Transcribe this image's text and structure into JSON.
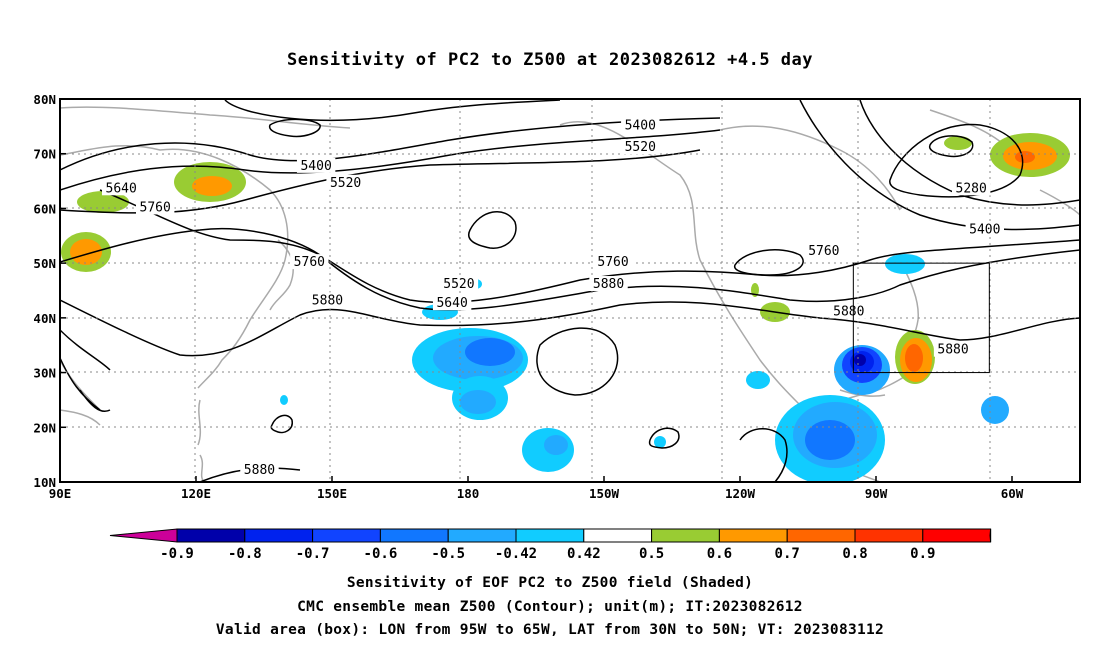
{
  "title": "Sensitivity of PC2 to Z500 at 2023082612 +4.5 day",
  "map": {
    "lon_labels": [
      "90E",
      "120E",
      "150E",
      "180",
      "150W",
      "120W",
      "90W",
      "60W"
    ],
    "lat_labels": [
      "80N",
      "70N",
      "60N",
      "50N",
      "40N",
      "30N",
      "20N",
      "10N"
    ],
    "contour_labels": [
      {
        "text": "5400",
        "lon": 146.5,
        "lat": 67.6
      },
      {
        "text": "5640",
        "lon": 103.5,
        "lat": 63.5
      },
      {
        "text": "5520",
        "lon": 153.0,
        "lat": 64.5
      },
      {
        "text": "5760",
        "lon": 111.0,
        "lat": 60.0
      },
      {
        "text": "5760",
        "lon": 145.0,
        "lat": 50.0
      },
      {
        "text": "5880",
        "lon": 149.0,
        "lat": 43.0
      },
      {
        "text": "5400",
        "lon": 218.0,
        "lat": 75.0
      },
      {
        "text": "5520",
        "lon": 218.0,
        "lat": 71.0
      },
      {
        "text": "5520",
        "lon": 178.0,
        "lat": 46.0
      },
      {
        "text": "5640",
        "lon": 176.5,
        "lat": 42.5
      },
      {
        "text": "5760",
        "lon": 212.0,
        "lat": 50.0
      },
      {
        "text": "5880",
        "lon": 211.0,
        "lat": 46.0
      },
      {
        "text": "5760",
        "lon": 258.5,
        "lat": 52.0
      },
      {
        "text": "5880",
        "lon": 264.0,
        "lat": 41.0
      },
      {
        "text": "5280",
        "lon": 291.0,
        "lat": 63.5
      },
      {
        "text": "5400",
        "lon": 294.0,
        "lat": 56.0
      },
      {
        "text": "5880",
        "lon": 287.0,
        "lat": 34.0
      },
      {
        "text": "5880",
        "lon": 134.0,
        "lat": 12.0
      }
    ]
  },
  "colorbar": {
    "labels": [
      "-0.9",
      "-0.8",
      "-0.7",
      "-0.6",
      "-0.5",
      "-0.42",
      "0.42",
      "0.5",
      "0.6",
      "0.7",
      "0.8",
      "0.9"
    ],
    "colors": {
      "low_tri": "#cc0099",
      "bins": [
        "#0000aa",
        "#0022ee",
        "#1144ff",
        "#1177ff",
        "#22aaff",
        "#11ccff",
        "#ffffff",
        "#99cc33",
        "#ff9900",
        "#ff6600",
        "#ff3300",
        "#ff0000"
      ],
      "high_tri": "#ff99cc"
    }
  },
  "captions": [
    "Sensitivity of EOF PC2 to Z500 field (Shaded)",
    "CMC ensemble mean Z500 (Contour); unit(m); IT:2023082612",
    "Valid area (box): LON from 95W to 65W, LAT from 30N to 50N; VT: 2023083112"
  ],
  "valid_box": {
    "lon_w": 265,
    "lon_e": 295,
    "lat_s": 30,
    "lat_n": 50
  }
}
